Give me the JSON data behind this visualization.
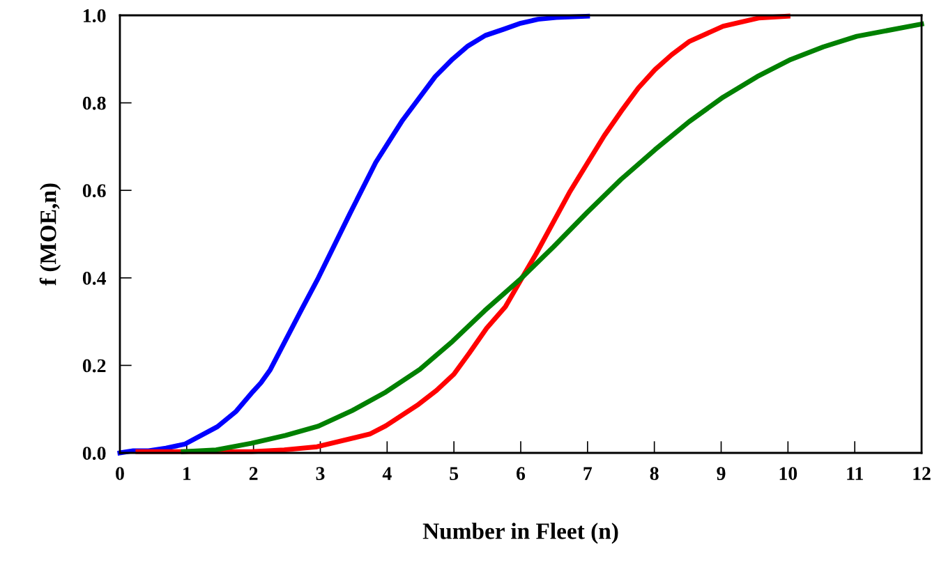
{
  "chart_data": {
    "type": "line",
    "xlabel": "Number in Fleet (n)",
    "ylabel": "f (MOE,n)",
    "xlim": [
      0,
      12
    ],
    "xticks": [
      0,
      1,
      2,
      3,
      4,
      5,
      6,
      7,
      8,
      9,
      10,
      11,
      12
    ],
    "ylim": [
      0,
      1
    ],
    "yticks": [
      {
        "value": 0,
        "label": "0.0"
      },
      {
        "value": 0.2,
        "label": "0.2"
      },
      {
        "value": 0.4,
        "label": "0.4"
      },
      {
        "value": 0.6,
        "label": "0.6"
      },
      {
        "value": 0.8,
        "label": "0.8"
      },
      {
        "value": 1,
        "label": "1.0"
      }
    ],
    "grid": false,
    "legend": false,
    "line_style": "solid",
    "marker": "none",
    "series": [
      {
        "color": "#0000ff",
        "x": [
          0,
          0.2,
          0.43,
          0.69,
          0.97,
          1.46,
          1.74,
          1.99,
          2.11,
          2.25,
          2.71,
          2.97,
          3.44,
          3.83,
          3.98,
          4.23,
          4.72,
          4.98,
          5.21,
          5.47,
          5.74,
          6.0,
          6.26,
          6.53,
          7.0
        ],
        "values": [
          0,
          0.005,
          0.005,
          0.011,
          0.02,
          0.06,
          0.095,
          0.14,
          0.16,
          0.19,
          0.325,
          0.4,
          0.546,
          0.664,
          0.7,
          0.76,
          0.86,
          0.9,
          0.93,
          0.954,
          0.968,
          0.982,
          0.991,
          0.995,
          0.998
        ]
      },
      {
        "color": "#ff0000",
        "x": [
          0.27,
          1.97,
          2.46,
          2.95,
          3.74,
          3.98,
          4.47,
          4.74,
          5.0,
          5.23,
          5.49,
          5.77,
          6.0,
          6.23,
          6.74,
          7.25,
          7.5,
          7.76,
          8.01,
          8.26,
          8.52,
          9.03,
          9.56,
          10.0
        ],
        "values": [
          0.003,
          0.003,
          0.007,
          0.014,
          0.043,
          0.062,
          0.111,
          0.143,
          0.18,
          0.228,
          0.285,
          0.334,
          0.395,
          0.455,
          0.598,
          0.725,
          0.78,
          0.834,
          0.876,
          0.91,
          0.94,
          0.975,
          0.994,
          0.998
        ]
      },
      {
        "color": "#008000",
        "x": [
          0.95,
          1.44,
          1.97,
          2.48,
          2.97,
          3.48,
          3.98,
          4.49,
          4.98,
          5.46,
          5.98,
          6.49,
          6.99,
          7.5,
          8.01,
          8.52,
          9.03,
          9.54,
          10.04,
          10.53,
          11.03,
          12.0
        ],
        "values": [
          0.003,
          0.007,
          0.022,
          0.04,
          0.061,
          0.097,
          0.139,
          0.191,
          0.255,
          0.325,
          0.395,
          0.471,
          0.549,
          0.625,
          0.693,
          0.757,
          0.813,
          0.86,
          0.899,
          0.928,
          0.952,
          0.98
        ]
      }
    ]
  }
}
